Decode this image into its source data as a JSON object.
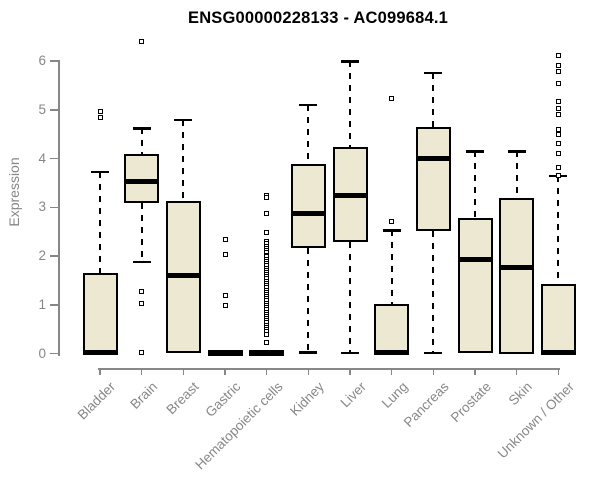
{
  "header": {
    "title": "ENSG00000228133 - AC099684.1"
  },
  "chart_data": {
    "type": "boxplot",
    "title": "ENSG00000228133 - AC099684.1",
    "xlabel": "",
    "ylabel": "Expression",
    "ylim": [
      -0.2,
      6.5
    ],
    "yticks": [
      0,
      1,
      2,
      3,
      4,
      5,
      6
    ],
    "grid": false,
    "legend_position": "none",
    "categories": [
      "Bladder",
      "Brain",
      "Breast",
      "Gastric",
      "Hematopoietic cells",
      "Kidney",
      "Liver",
      "Lung",
      "Pancreas",
      "Prostate",
      "Skin",
      "Unknown / Other"
    ],
    "series": [
      {
        "name": "Bladder",
        "whisker_low": 0,
        "q1": 0,
        "median": 0.02,
        "q3": 1.66,
        "whisker_high": 3.73,
        "outliers": [
          4.85,
          4.97
        ]
      },
      {
        "name": "Brain",
        "whisker_low": 1.88,
        "q1": 3.09,
        "median": 3.52,
        "q3": 4.09,
        "whisker_high": 4.62,
        "outliers": [
          6.39,
          1.27,
          1.03,
          0.02
        ]
      },
      {
        "name": "Breast",
        "whisker_low": 0,
        "q1": 0,
        "median": 1.61,
        "q3": 3.13,
        "whisker_high": 4.8,
        "outliers": []
      },
      {
        "name": "Gastric",
        "whisker_low": 0,
        "q1": 0,
        "median": 0.01,
        "q3": 0.04,
        "whisker_high": 0.04,
        "outliers": [
          2.34,
          2.04,
          1.18,
          0.99
        ]
      },
      {
        "name": "Hematopoietic cells",
        "whisker_low": 0,
        "q1": 0,
        "median": 0.01,
        "q3": 0.04,
        "whisker_high": 0.04,
        "outliers": [
          3.25,
          3.19,
          2.88,
          2.49,
          2.29,
          2.25,
          2.2,
          2.16,
          2.11,
          2.07,
          2.02,
          1.98,
          1.93,
          1.89,
          1.84,
          1.8,
          1.75,
          1.71,
          1.66,
          1.62,
          1.57,
          1.53,
          1.48,
          1.44,
          1.39,
          1.35,
          1.3,
          1.26,
          1.21,
          1.17,
          1.12,
          1.08,
          1.03,
          0.99,
          0.94,
          0.9,
          0.85,
          0.81,
          0.76,
          0.72,
          0.67,
          0.63,
          0.58,
          0.54,
          0.49,
          0.45,
          0.4,
          0.22
        ]
      },
      {
        "name": "Kidney",
        "whisker_low": 0.03,
        "q1": 2.17,
        "median": 2.88,
        "q3": 3.89,
        "whisker_high": 5.1,
        "outliers": []
      },
      {
        "name": "Liver",
        "whisker_low": 0.02,
        "q1": 2.29,
        "median": 3.24,
        "q3": 4.23,
        "whisker_high": 6.0,
        "outliers": []
      },
      {
        "name": "Lung",
        "whisker_low": 0,
        "q1": 0,
        "median": 0.02,
        "q3": 1.01,
        "whisker_high": 2.53,
        "outliers": [
          5.23,
          2.7
        ]
      },
      {
        "name": "Pancreas",
        "whisker_low": 0.02,
        "q1": 2.51,
        "median": 4.0,
        "q3": 4.65,
        "whisker_high": 5.76,
        "outliers": []
      },
      {
        "name": "Prostate",
        "whisker_low": 0,
        "q1": 0,
        "median": 1.92,
        "q3": 2.78,
        "whisker_high": 4.15,
        "outliers": []
      },
      {
        "name": "Skin",
        "whisker_low": 0,
        "q1": 0,
        "median": 1.77,
        "q3": 3.2,
        "whisker_high": 4.15,
        "outliers": []
      },
      {
        "name": "Unknown / Other",
        "whisker_low": 0,
        "q1": 0,
        "median": 0.03,
        "q3": 1.43,
        "whisker_high": 3.65,
        "outliers": [
          6.12,
          5.9,
          5.78,
          5.54,
          5.17,
          5.03,
          4.91,
          4.6,
          4.5,
          4.31,
          4.11,
          3.81,
          3.66
        ]
      }
    ],
    "colors": {
      "box_fill": "#EDE8D1",
      "box_border": "#000000",
      "median": "#000000",
      "whisker": "#000000",
      "axis": "#878787",
      "tick_label": "#878787",
      "title": "#000000"
    }
  }
}
